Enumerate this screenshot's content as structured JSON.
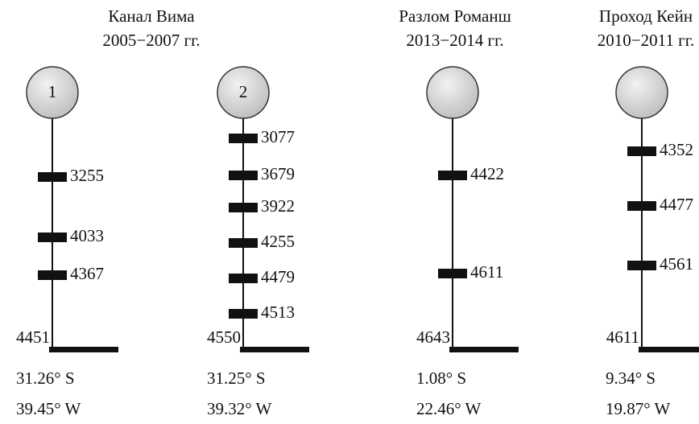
{
  "groups": [
    {
      "title": "Канал Вима",
      "period": "2005−2007 гг."
    },
    {
      "title": "Разлом Романш",
      "period": "2013−2014 гг."
    },
    {
      "title": "Проход Кейн",
      "period": "2010−2011 гг."
    }
  ],
  "moorings": [
    {
      "label": "1",
      "instruments": [
        "3255",
        "4033",
        "4367"
      ],
      "bottom": "4451",
      "lat": "31.26° S",
      "lon": "39.45° W"
    },
    {
      "label": "2",
      "instruments": [
        "3077",
        "3679",
        "3922",
        "4255",
        "4479",
        "4513"
      ],
      "bottom": "4550",
      "lat": "31.25° S",
      "lon": "39.32° W"
    },
    {
      "instruments": [
        "4422",
        "4611"
      ],
      "bottom": "4643",
      "lat": "1.08° S",
      "lon": "22.46° W"
    },
    {
      "instruments": [
        "4352",
        "4477",
        "4561"
      ],
      "bottom": "4611",
      "lat": "9.34° S",
      "lon": "19.87° W"
    }
  ]
}
